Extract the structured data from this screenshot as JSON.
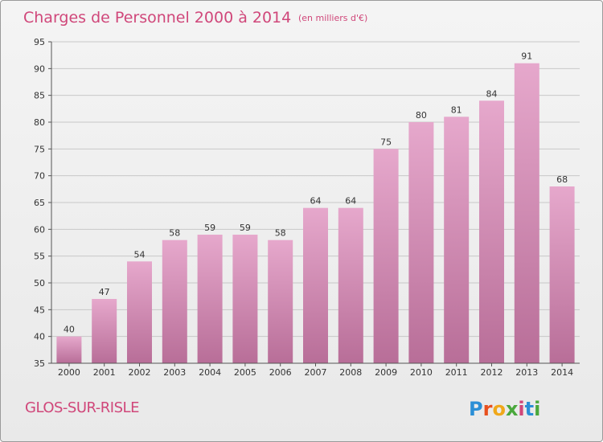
{
  "title": "Charges de Personnel 2000 à 2014",
  "unit_note": "(en milliers d'€)",
  "place_name": "GLOS-SUR-RISLE",
  "logo": {
    "letters": [
      "P",
      "r",
      "o",
      "x",
      "i",
      "t",
      "i"
    ],
    "colors": [
      "#2b8fd6",
      "#e8501e",
      "#f0a81a",
      "#4aa83c",
      "#d0477a",
      "#2b8fd6",
      "#4aa83c"
    ]
  },
  "colors": {
    "title": "#d0477a",
    "bar_top": "#e6a8cc",
    "bar_bottom": "#b86e98",
    "grid": "#c8c8c8"
  },
  "chart_data": {
    "type": "bar",
    "categories": [
      "2000",
      "2001",
      "2002",
      "2003",
      "2004",
      "2005",
      "2006",
      "2007",
      "2008",
      "2009",
      "2010",
      "2011",
      "2012",
      "2013",
      "2014"
    ],
    "values": [
      40,
      47,
      54,
      58,
      59,
      59,
      58,
      64,
      64,
      75,
      80,
      81,
      84,
      91,
      68
    ],
    "ylim": [
      35,
      95
    ],
    "yticks": [
      35,
      40,
      45,
      50,
      55,
      60,
      65,
      70,
      75,
      80,
      85,
      90,
      95
    ],
    "grid": true,
    "title": "Charges de Personnel 2000 à 2014"
  }
}
